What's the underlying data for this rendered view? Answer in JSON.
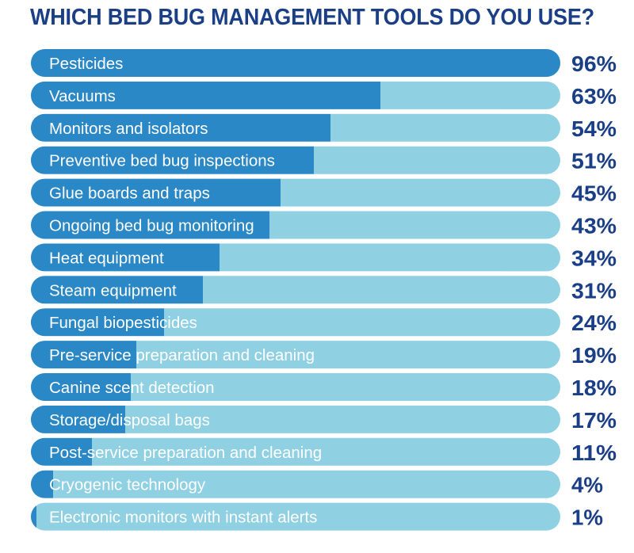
{
  "colors": {
    "title": "#1b3f86",
    "track": "#8fd0e3",
    "fill": "#2b88c6",
    "label": "#ffffff",
    "percent": "#1b3f86"
  },
  "chart_data": {
    "type": "bar",
    "orientation": "horizontal",
    "title": "WHICH BED BUG MANAGEMENT TOOLS DO YOU USE?",
    "unit": "%",
    "xlim": [
      0,
      100
    ],
    "grid": false,
    "legend": "none",
    "categories": [
      "Pesticides",
      "Vacuums",
      "Monitors and isolators",
      "Preventive bed bug inspections",
      "Glue boards and traps",
      "Ongoing bed bug monitoring",
      "Heat equipment",
      "Steam equipment",
      "Fungal biopesticides",
      "Pre-service preparation and cleaning",
      "Canine scent detection",
      "Storage/disposal bags",
      "Post-service preparation and cleaning",
      "Cryogenic technology",
      "Electronic monitors with instant alerts"
    ],
    "values": [
      96,
      63,
      54,
      51,
      45,
      43,
      34,
      31,
      24,
      19,
      18,
      17,
      11,
      4,
      1
    ],
    "value_labels": [
      "96%",
      "63%",
      "54%",
      "51%",
      "45%",
      "43%",
      "34%",
      "31%",
      "24%",
      "19%",
      "18%",
      "17%",
      "11%",
      "4%",
      "1%"
    ]
  }
}
